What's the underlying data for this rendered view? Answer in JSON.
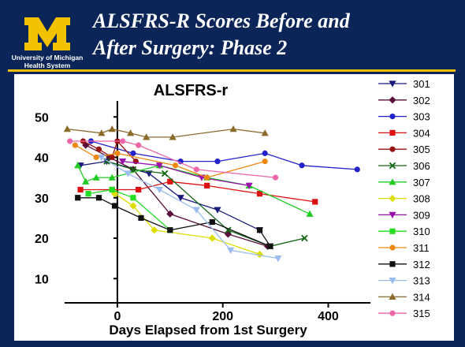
{
  "header": {
    "logo_letter": "M",
    "logo_text_line1": "University of Michigan",
    "logo_text_line2": "Health System",
    "title_line1": "ALSFRS-R Scores Before and",
    "title_line2": "After Surgery: Phase 2"
  },
  "colors": {
    "background": "#0b2559",
    "accent": "#f2c200",
    "panel": "#ffffff"
  },
  "chart_data": {
    "type": "line",
    "title": "ALSFRS-r",
    "xlabel": "Days Elapsed from 1st Surgery",
    "ylabel": "",
    "xlim": [
      -100,
      480
    ],
    "ylim": [
      4,
      52
    ],
    "xticks": [
      0,
      200,
      400
    ],
    "yticks": [
      10,
      20,
      30,
      40,
      50
    ],
    "grid": false,
    "legend": "right",
    "series": [
      {
        "name": "301",
        "color": "#1a1a7a",
        "marker": "tri-down",
        "x": [
          -70,
          -20,
          60,
          120,
          190,
          270
        ],
        "y": [
          38,
          39,
          36,
          30,
          27,
          22
        ]
      },
      {
        "name": "302",
        "color": "#5a0f3a",
        "marker": "diamond",
        "x": [
          -60,
          -15,
          30,
          100,
          210,
          285
        ],
        "y": [
          43,
          40,
          37,
          26,
          21,
          18
        ]
      },
      {
        "name": "303",
        "color": "#2222cc",
        "marker": "circle",
        "x": [
          -50,
          30,
          120,
          190,
          280,
          350,
          455
        ],
        "y": [
          44,
          41,
          39,
          39,
          41,
          38,
          37
        ]
      },
      {
        "name": "304",
        "color": "#dd1111",
        "marker": "square",
        "x": [
          -70,
          -10,
          40,
          100,
          170,
          270,
          375
        ],
        "y": [
          32,
          32,
          32,
          34,
          33,
          31,
          29
        ]
      },
      {
        "name": "305",
        "color": "#991111",
        "marker": "circle",
        "x": [
          -65,
          -35,
          -10,
          0,
          35
        ],
        "y": [
          44,
          42,
          40,
          44,
          39
        ]
      },
      {
        "name": "306",
        "color": "#116611",
        "marker": "x",
        "x": [
          -20,
          30,
          90,
          210,
          290,
          355
        ],
        "y": [
          39,
          37,
          36,
          22,
          18,
          20
        ]
      },
      {
        "name": "307",
        "color": "#22cc22",
        "marker": "tri-up",
        "x": [
          -75,
          -60,
          -40,
          -10,
          80,
          170,
          250,
          365
        ],
        "y": [
          38,
          34,
          35,
          35,
          38,
          35,
          33,
          26
        ]
      },
      {
        "name": "308",
        "color": "#dddd00",
        "marker": "diamond",
        "x": [
          -5,
          30,
          70,
          180,
          270
        ],
        "y": [
          31,
          28,
          22,
          20,
          16
        ]
      },
      {
        "name": "309",
        "color": "#9911aa",
        "marker": "tri-down",
        "x": [
          10,
          80,
          160,
          250
        ],
        "y": [
          39,
          38,
          35,
          33
        ]
      },
      {
        "name": "310",
        "color": "#22dd22",
        "marker": "square",
        "x": [
          -55,
          -10,
          30,
          100
        ],
        "y": [
          31,
          32,
          30,
          22
        ]
      },
      {
        "name": "311",
        "color": "#ee8811",
        "marker": "circle",
        "x": [
          -80,
          -40,
          0,
          110,
          170,
          280
        ],
        "y": [
          43,
          40,
          41,
          38,
          35,
          39
        ]
      },
      {
        "name": "312",
        "color": "#111111",
        "marker": "square",
        "x": [
          -75,
          -35,
          -5,
          45,
          100,
          180,
          290,
          270
        ],
        "y": [
          30,
          30,
          28,
          25,
          22,
          24,
          18,
          22
        ]
      },
      {
        "name": "313",
        "color": "#99bbee",
        "marker": "tri-down",
        "x": [
          -30,
          20,
          80,
          150,
          215,
          305
        ],
        "y": [
          40,
          36,
          32,
          27,
          17,
          15
        ]
      },
      {
        "name": "314",
        "color": "#8b6a2a",
        "marker": "tri-up",
        "x": [
          -95,
          -30,
          -10,
          25,
          55,
          105,
          220,
          280
        ],
        "y": [
          47,
          46,
          47,
          46,
          45,
          45,
          47,
          46
        ]
      },
      {
        "name": "315",
        "color": "#ee66aa",
        "marker": "circle",
        "x": [
          -90,
          10,
          40,
          150,
          300
        ],
        "y": [
          44,
          44,
          43,
          37,
          35
        ]
      }
    ]
  }
}
